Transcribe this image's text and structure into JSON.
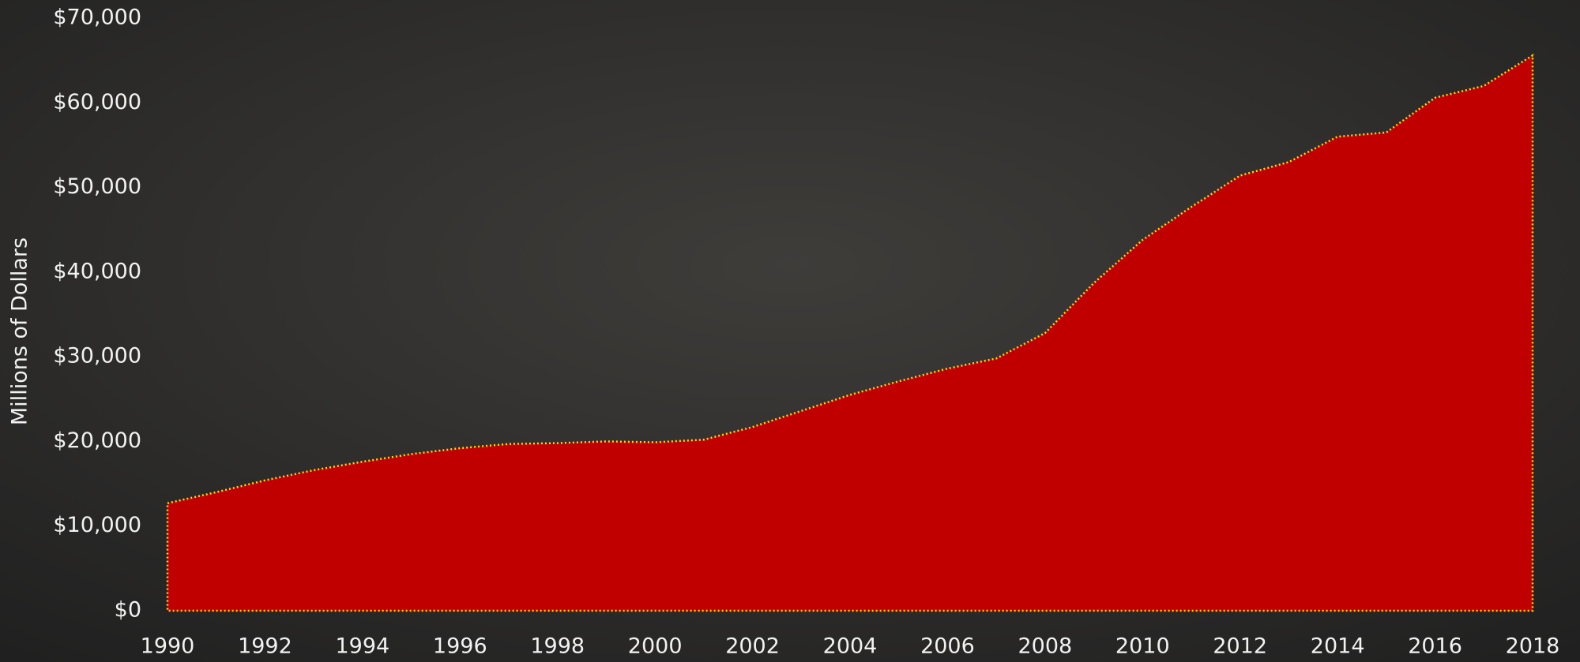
{
  "chart_data": {
    "type": "area",
    "y_label": "Millions of Dollars",
    "x": [
      1990,
      1991,
      1992,
      1993,
      1994,
      1995,
      1996,
      1997,
      1998,
      1999,
      2000,
      2001,
      2002,
      2003,
      2004,
      2005,
      2006,
      2007,
      2008,
      2009,
      2010,
      2011,
      2012,
      2013,
      2014,
      2015,
      2016,
      2017,
      2018
    ],
    "values": [
      12700,
      14000,
      15400,
      16600,
      17600,
      18500,
      19200,
      19700,
      19800,
      20000,
      19900,
      20200,
      21700,
      23600,
      25500,
      27100,
      28600,
      29800,
      32800,
      38700,
      43800,
      47700,
      51400,
      53000,
      56000,
      56500,
      60600,
      62000,
      65600
    ],
    "color": "#c00000",
    "line_color": "#ffd700",
    "xlim": [
      1990,
      2018
    ],
    "xticks": [
      1990,
      1992,
      1994,
      1996,
      1998,
      2000,
      2002,
      2004,
      2006,
      2008,
      2010,
      2012,
      2014,
      2016,
      2018
    ],
    "ylim": [
      0,
      70000
    ],
    "yticks": [
      {
        "value": 0,
        "label": "$0"
      },
      {
        "value": 10000,
        "label": "$10,000"
      },
      {
        "value": 20000,
        "label": "$20,000"
      },
      {
        "value": 30000,
        "label": "$30,000"
      },
      {
        "value": 40000,
        "label": "$40,000"
      },
      {
        "value": 50000,
        "label": "$50,000"
      },
      {
        "value": 60000,
        "label": "$60,000"
      },
      {
        "value": 70000,
        "label": "$70,000"
      }
    ],
    "grid": false
  }
}
